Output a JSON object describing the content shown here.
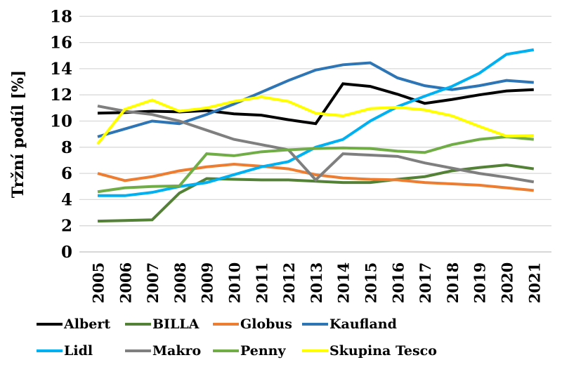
{
  "chart_data": {
    "type": "line",
    "title": "",
    "xlabel": "",
    "ylabel": "Tržní podíl [%]",
    "ylim": [
      0,
      18
    ],
    "ytick_step": 2,
    "grid": "horizontal",
    "legend_position": "bottom",
    "categories": [
      "2005",
      "2006",
      "2007",
      "2008",
      "2009",
      "2010",
      "2011",
      "2012",
      "2013",
      "2014",
      "2015",
      "2016",
      "2017",
      "2018",
      "2019",
      "2020",
      "2021"
    ],
    "series": [
      {
        "name": "Albert",
        "color": "#000000",
        "values": [
          10.6,
          10.65,
          10.75,
          10.7,
          10.8,
          10.55,
          10.45,
          10.1,
          9.8,
          12.85,
          12.65,
          12.05,
          11.35,
          11.65,
          12.0,
          12.3,
          12.4
        ]
      },
      {
        "name": "BILLA",
        "color": "#538135",
        "values": [
          2.35,
          2.4,
          2.45,
          4.5,
          5.6,
          5.55,
          5.5,
          5.5,
          5.4,
          5.3,
          5.3,
          5.55,
          5.75,
          6.2,
          6.45,
          6.65,
          6.35
        ]
      },
      {
        "name": "Globus",
        "color": "#ED7D31",
        "values": [
          6.0,
          5.45,
          5.75,
          6.2,
          6.5,
          6.7,
          6.55,
          6.35,
          5.9,
          5.65,
          5.55,
          5.5,
          5.3,
          5.2,
          5.1,
          4.9,
          4.7
        ]
      },
      {
        "name": "Kaufland",
        "color": "#2E75B6",
        "values": [
          8.8,
          9.4,
          10.0,
          9.8,
          10.5,
          11.3,
          12.2,
          13.1,
          13.9,
          14.3,
          14.45,
          13.3,
          12.7,
          12.4,
          12.7,
          13.1,
          12.95
        ]
      },
      {
        "name": "Lidl",
        "color": "#00B0F0",
        "values": [
          4.3,
          4.3,
          4.55,
          5.0,
          5.3,
          5.9,
          6.5,
          6.9,
          8.0,
          8.6,
          10.0,
          11.1,
          11.9,
          12.65,
          13.65,
          15.1,
          15.45
        ]
      },
      {
        "name": "Makro",
        "color": "#7F7F7F",
        "values": [
          11.15,
          10.75,
          10.5,
          10.0,
          9.3,
          8.6,
          8.2,
          7.8,
          5.5,
          7.5,
          7.4,
          7.3,
          6.8,
          6.4,
          6.0,
          5.7,
          5.35
        ]
      },
      {
        "name": "Penny",
        "color": "#70AD47",
        "values": [
          4.6,
          4.9,
          5.0,
          5.05,
          7.5,
          7.35,
          7.65,
          7.8,
          7.9,
          7.95,
          7.9,
          7.7,
          7.6,
          8.2,
          8.6,
          8.8,
          8.6
        ]
      },
      {
        "name": "Skupina Tesco",
        "color": "#FFFF00",
        "values": [
          8.25,
          10.9,
          11.6,
          10.75,
          11.0,
          11.5,
          11.85,
          11.5,
          10.6,
          10.4,
          10.95,
          11.05,
          10.85,
          10.4,
          9.6,
          8.85,
          8.9
        ]
      }
    ],
    "style": {
      "gridline_color": "#D9D9D9",
      "baseline_color": "#BFBFBF",
      "line_width": 4
    }
  }
}
